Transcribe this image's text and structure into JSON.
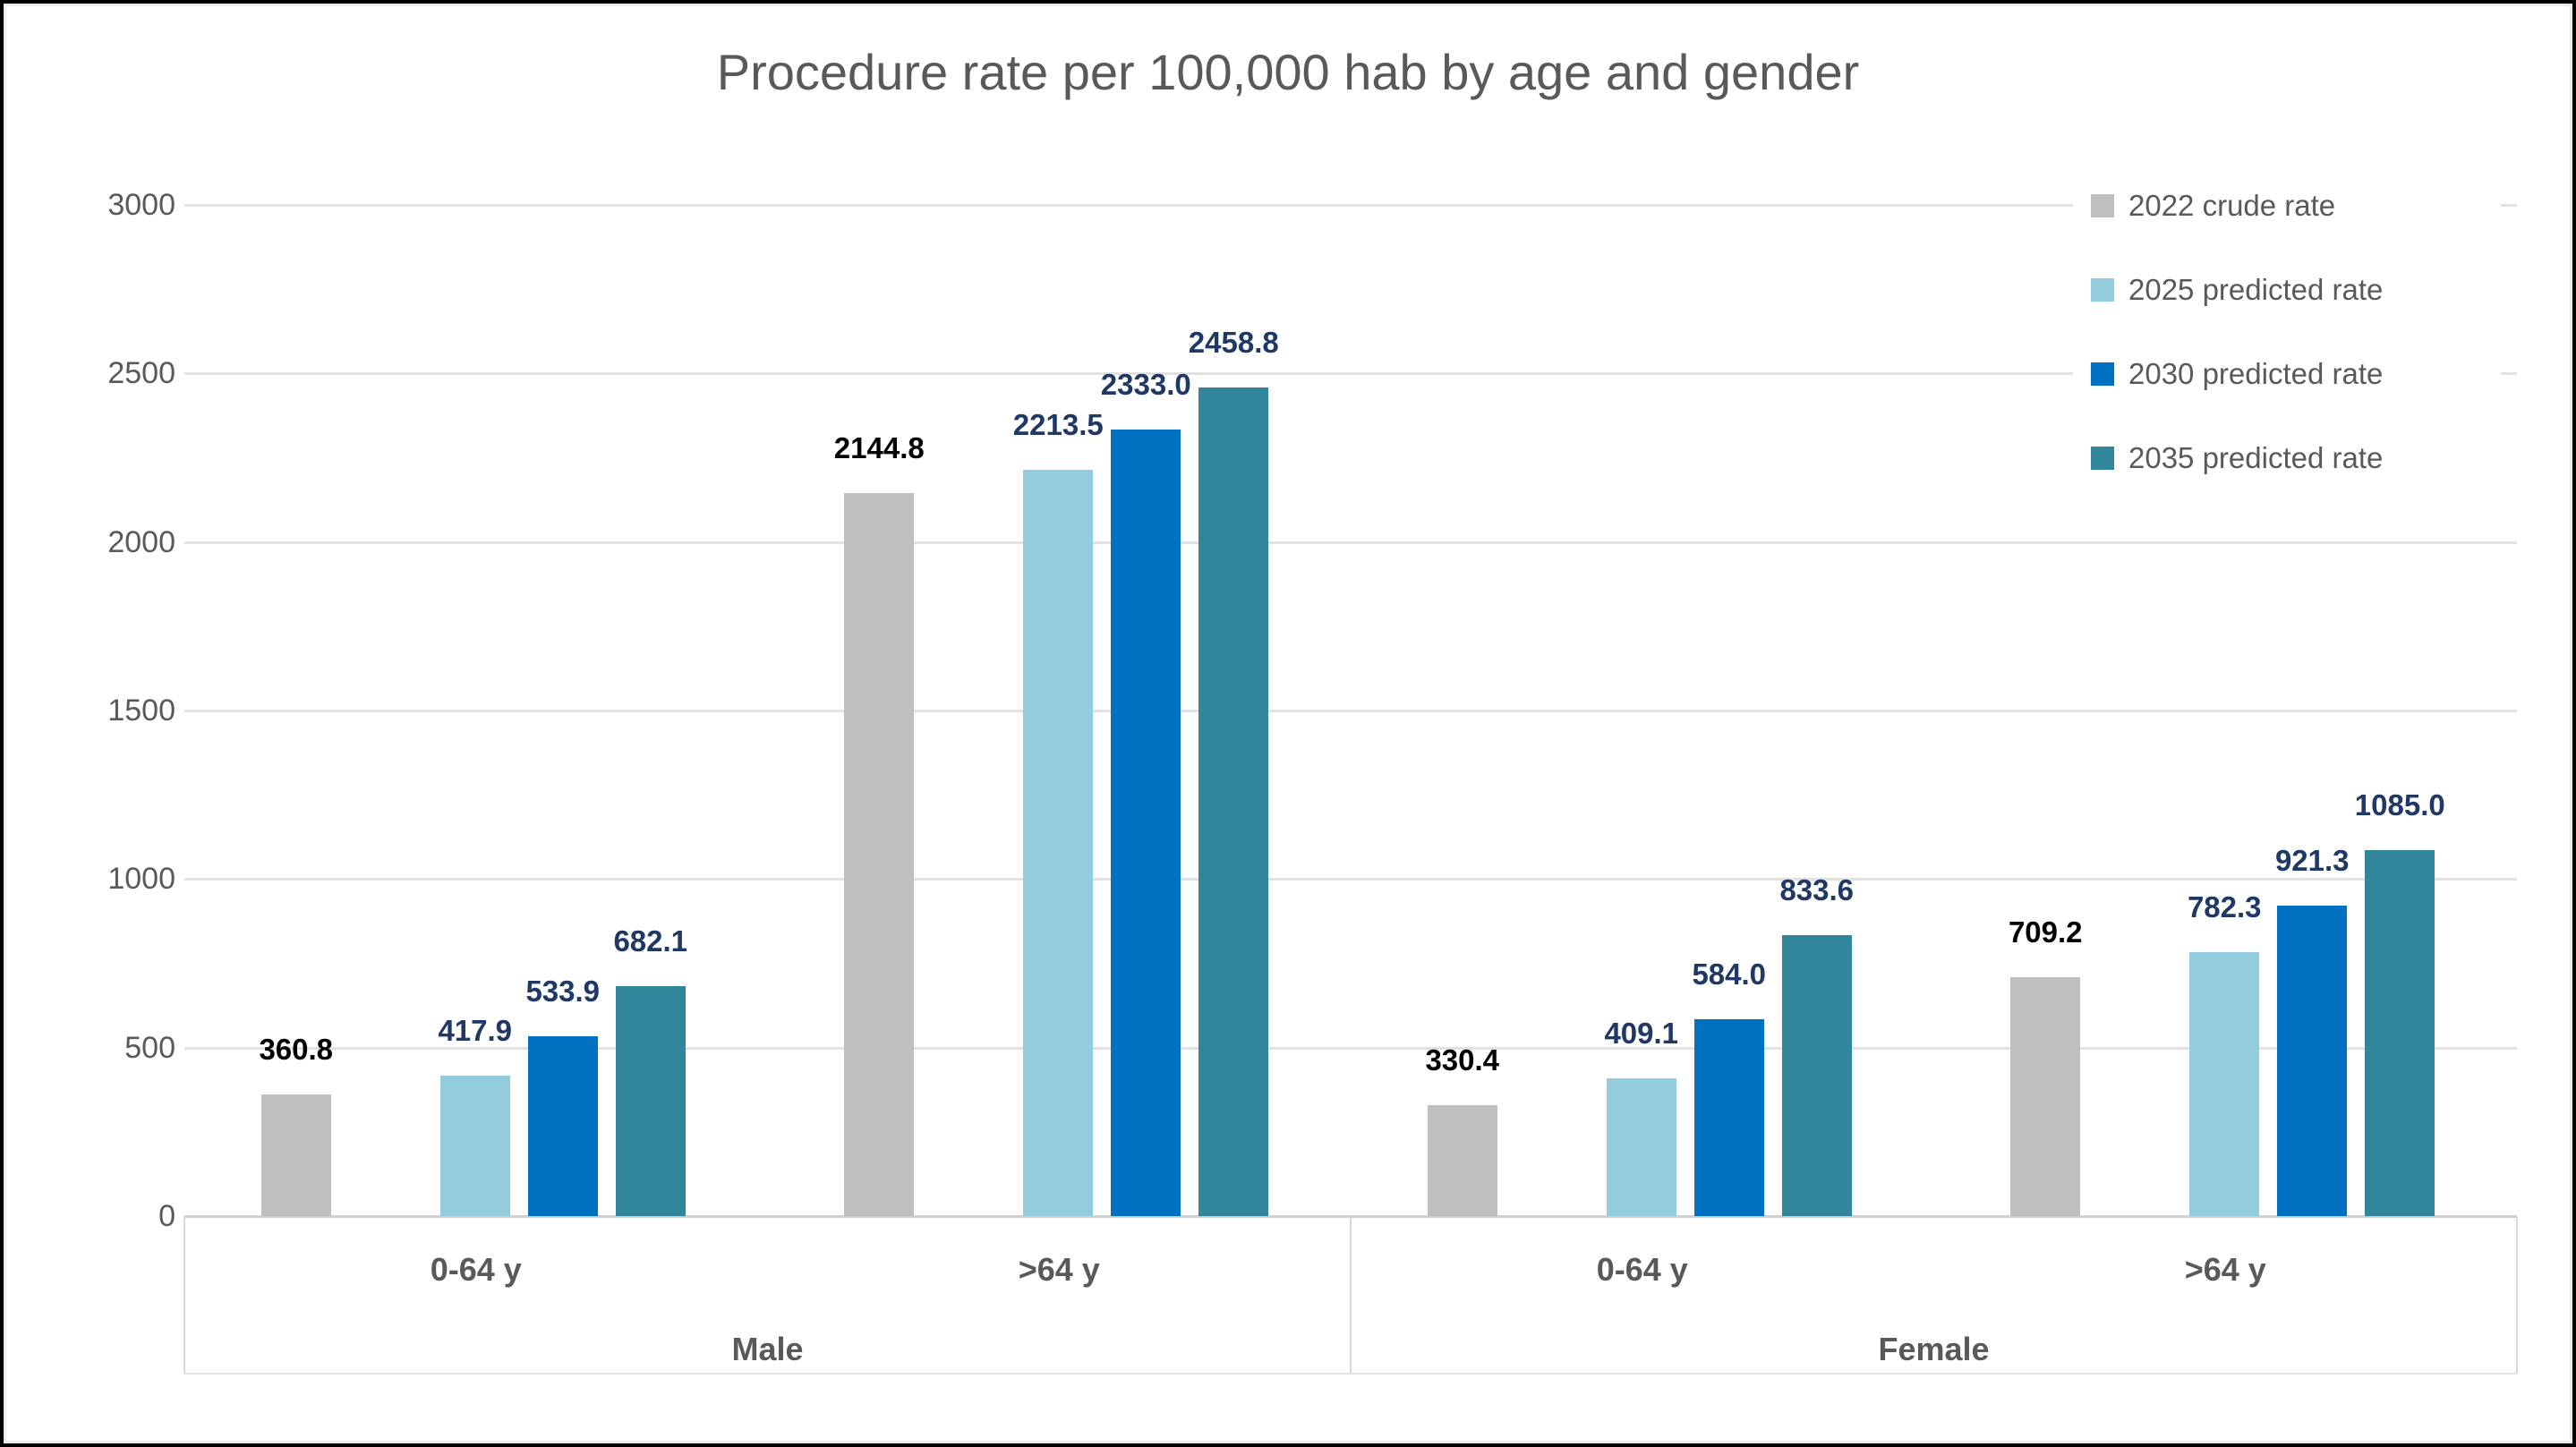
{
  "title": "Procedure rate per 100,000 hab by age and gender",
  "colors": {
    "series_2022": "#BFBFBF",
    "series_2025": "#93CDDD",
    "series_2030": "#0070C0",
    "series_2035": "#31869B",
    "text_gray": "#595959",
    "label_navy": "#1F3864",
    "label_black": "#000000",
    "gridline": "#E2E2E2"
  },
  "chart_data": {
    "type": "bar",
    "title": "Procedure rate per 100,000 hab by age and gender",
    "grid": true,
    "legend_position": "top-right",
    "group_level_1": [
      "Male",
      "Female"
    ],
    "group_level_2": [
      "0-64 y",
      ">64 y"
    ],
    "categories": [
      {
        "gender": "Male",
        "age": "0-64 y"
      },
      {
        "gender": "Male",
        "age": ">64 y"
      },
      {
        "gender": "Female",
        "age": "0-64 y"
      },
      {
        "gender": "Female",
        "age": ">64 y"
      }
    ],
    "series": [
      {
        "name": "2022 crude rate",
        "color": "#BFBFBF",
        "label_color": "#000000",
        "values": [
          360.8,
          2144.8,
          330.4,
          709.2
        ]
      },
      {
        "name": "2025 predicted rate",
        "color": "#93CDDD",
        "label_color": "#1F3864",
        "values": [
          417.9,
          2213.5,
          409.1,
          782.3
        ]
      },
      {
        "name": "2030 predicted rate",
        "color": "#0070C0",
        "label_color": "#1F3864",
        "values": [
          533.9,
          2333.0,
          584.0,
          921.3
        ]
      },
      {
        "name": "2035 predicted rate",
        "color": "#31869B",
        "label_color": "#1F3864",
        "values": [
          682.1,
          2458.8,
          833.6,
          1085.0
        ]
      }
    ],
    "y_axis": {
      "min": 0,
      "max": 3000,
      "step": 500,
      "ticks": [
        0,
        500,
        1000,
        1500,
        2000,
        2500,
        3000
      ]
    },
    "xlabel": "",
    "ylabel": "",
    "data_labels_decimals": 1
  }
}
